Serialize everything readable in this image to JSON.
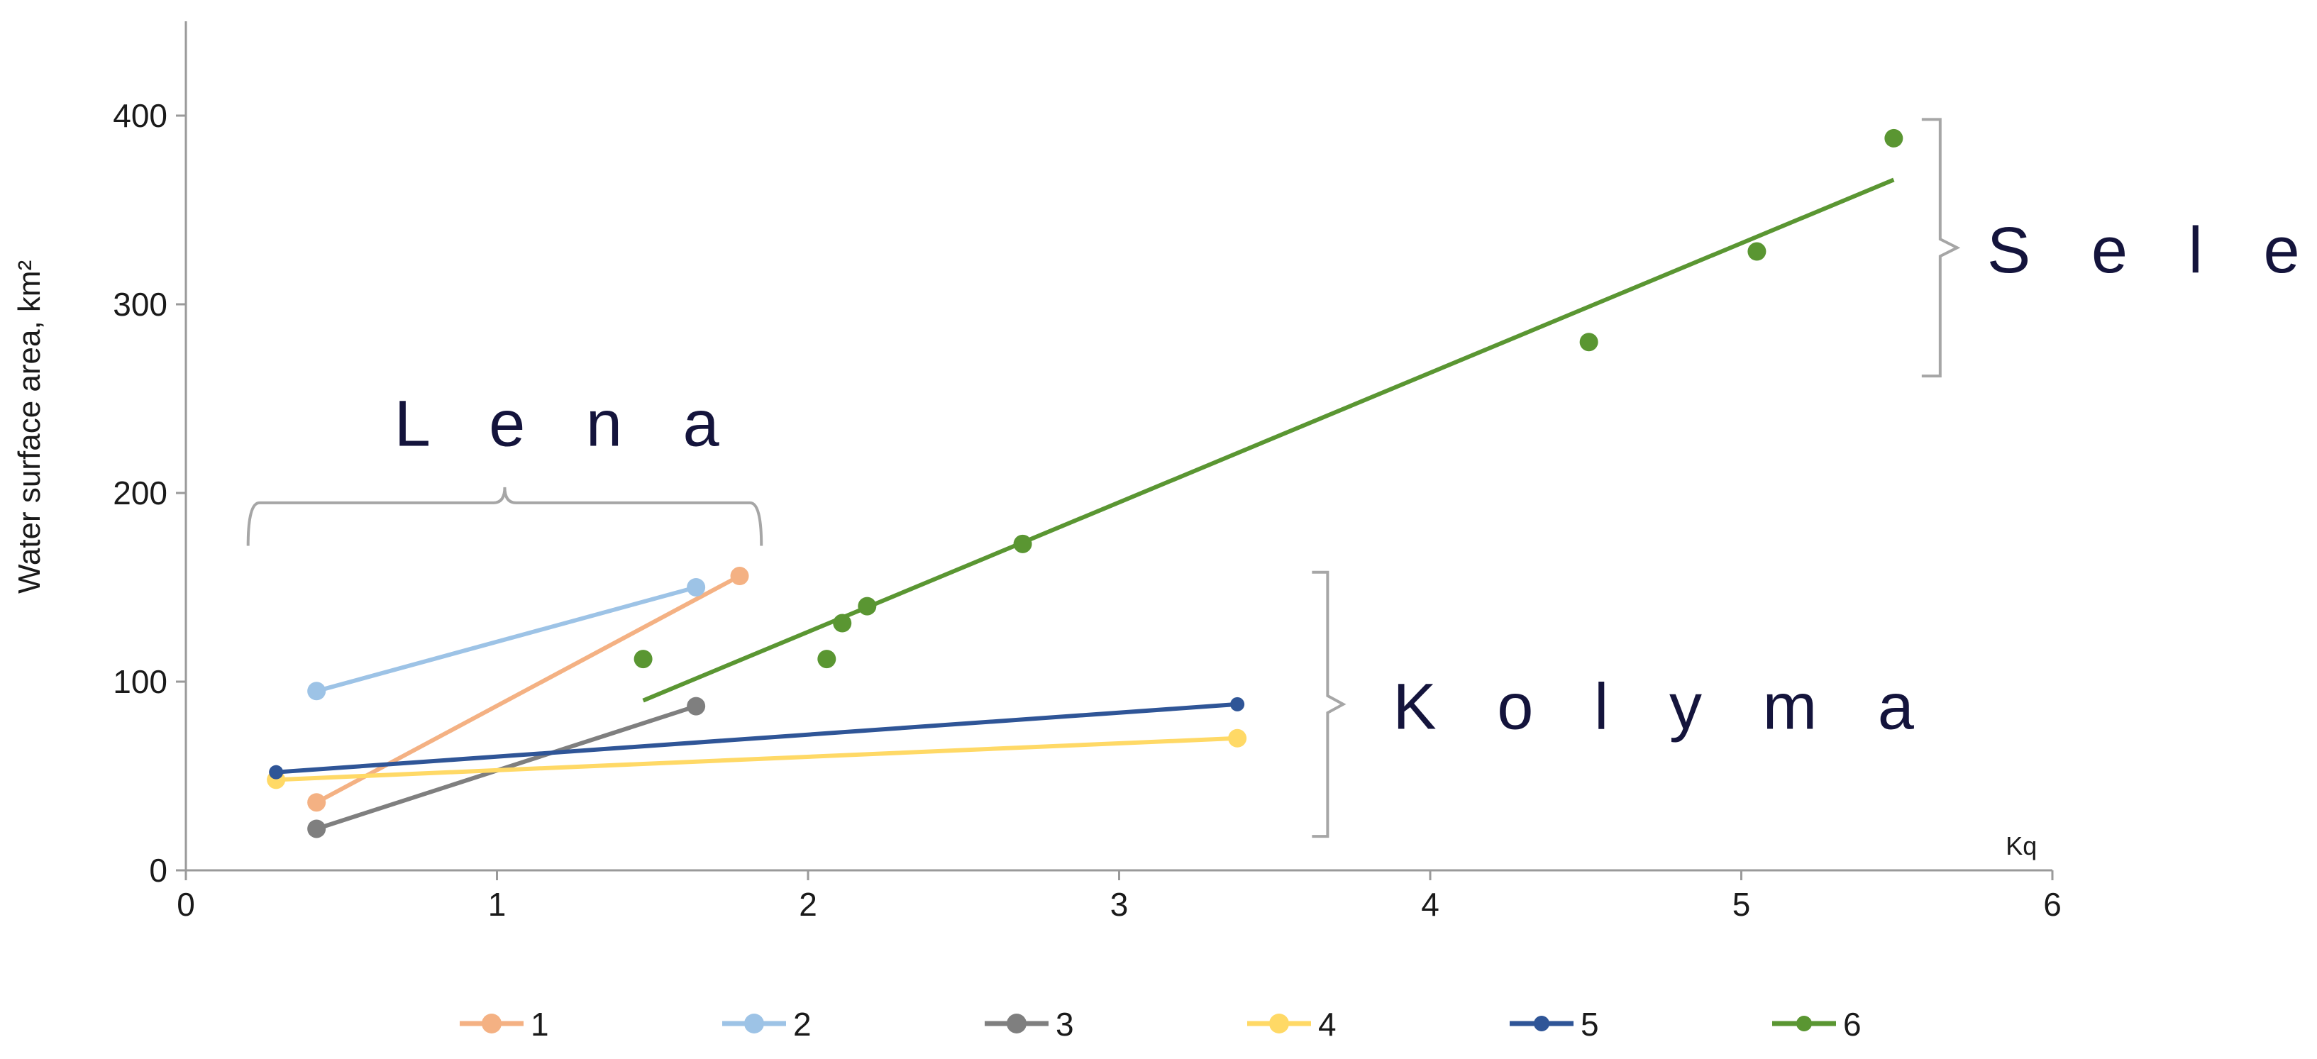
{
  "chart_data": {
    "type": "line",
    "title": "",
    "xlabel": "Kq",
    "ylabel": "Water surface area, km²",
    "xlim": [
      0,
      6
    ],
    "ylim": [
      0,
      450
    ],
    "x_ticks": [
      "0",
      "1",
      "2",
      "3",
      "4",
      "5",
      "6"
    ],
    "y_ticks": [
      "0",
      "100",
      "200",
      "300",
      "400"
    ],
    "legend_position": "bottom",
    "grid": false,
    "group_labels": {
      "lena": "L e n a",
      "kolyma": "K o l y m a",
      "selenga": "S e l e n g a"
    },
    "series": [
      {
        "name": "1",
        "color": "#f4b183",
        "mode": "line",
        "points": [
          [
            0.42,
            36
          ],
          [
            1.78,
            156
          ]
        ]
      },
      {
        "name": "2",
        "color": "#9dc3e6",
        "mode": "line",
        "points": [
          [
            0.42,
            95
          ],
          [
            1.64,
            150
          ]
        ]
      },
      {
        "name": "3",
        "color": "#7f7f7f",
        "mode": "line",
        "points": [
          [
            0.42,
            22
          ],
          [
            1.64,
            87
          ]
        ]
      },
      {
        "name": "4",
        "color": "#ffd966",
        "mode": "line",
        "points": [
          [
            0.29,
            48
          ],
          [
            3.38,
            70
          ]
        ]
      },
      {
        "name": "5",
        "color": "#2f5597",
        "mode": "line",
        "points": [
          [
            0.29,
            52
          ],
          [
            3.38,
            88
          ]
        ]
      },
      {
        "name": "6",
        "color": "#5a9632",
        "mode": "scatter-trend",
        "points": [
          [
            1.47,
            112
          ],
          [
            2.06,
            112
          ],
          [
            2.11,
            131
          ],
          [
            2.19,
            140
          ],
          [
            2.69,
            173
          ],
          [
            4.51,
            280
          ],
          [
            5.05,
            328
          ],
          [
            5.49,
            388
          ]
        ],
        "trendline": [
          [
            1.47,
            90
          ],
          [
            5.49,
            366
          ]
        ]
      }
    ]
  }
}
